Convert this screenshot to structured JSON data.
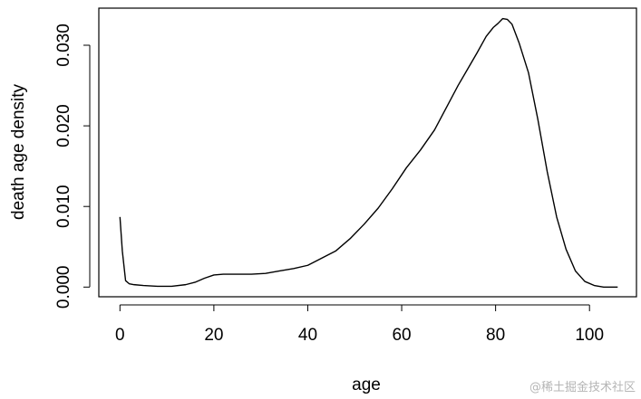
{
  "chart_data": {
    "type": "line",
    "title": "",
    "xlabel": "age",
    "ylabel": "death age density",
    "xlim": [
      -4.5,
      110
    ],
    "ylim": [
      -0.0012,
      0.0346
    ],
    "x_ticks": [
      0,
      20,
      40,
      60,
      80,
      100
    ],
    "x_tick_labels": [
      "0",
      "20",
      "40",
      "60",
      "80",
      "100"
    ],
    "y_ticks": [
      0.0,
      0.01,
      0.02,
      0.03
    ],
    "y_tick_labels": [
      "0.000",
      "0.010",
      "0.020",
      "0.030"
    ],
    "grid": false,
    "legend": "none",
    "series": [
      {
        "color": "#000000",
        "x": [
          0,
          0.5,
          1.2,
          2,
          3,
          5,
          8,
          11,
          14,
          16,
          18,
          20,
          22,
          25,
          28,
          31,
          34,
          37,
          40,
          43,
          46,
          49,
          52,
          55,
          58,
          61,
          64,
          67,
          70,
          72,
          74,
          76,
          78,
          79.5,
          80.5,
          81.5,
          82.5,
          83.5,
          85,
          87,
          89,
          91,
          93,
          95,
          97,
          99,
          101,
          103,
          106
        ],
        "y": [
          0.0087,
          0.0045,
          0.0008,
          0.0004,
          0.0003,
          0.0002,
          0.0001,
          0.0001,
          0.0003,
          0.0006,
          0.0011,
          0.0015,
          0.0016,
          0.0016,
          0.0016,
          0.0017,
          0.002,
          0.0023,
          0.0027,
          0.0036,
          0.0045,
          0.006,
          0.0078,
          0.0098,
          0.0122,
          0.0148,
          0.017,
          0.0195,
          0.0228,
          0.025,
          0.027,
          0.029,
          0.0311,
          0.0322,
          0.0327,
          0.0333,
          0.0332,
          0.0326,
          0.0303,
          0.0266,
          0.0208,
          0.0143,
          0.0087,
          0.0047,
          0.002,
          0.0007,
          0.0002,
          0.0,
          0.0
        ]
      }
    ]
  },
  "watermark": "@稀土掘金技术社区"
}
